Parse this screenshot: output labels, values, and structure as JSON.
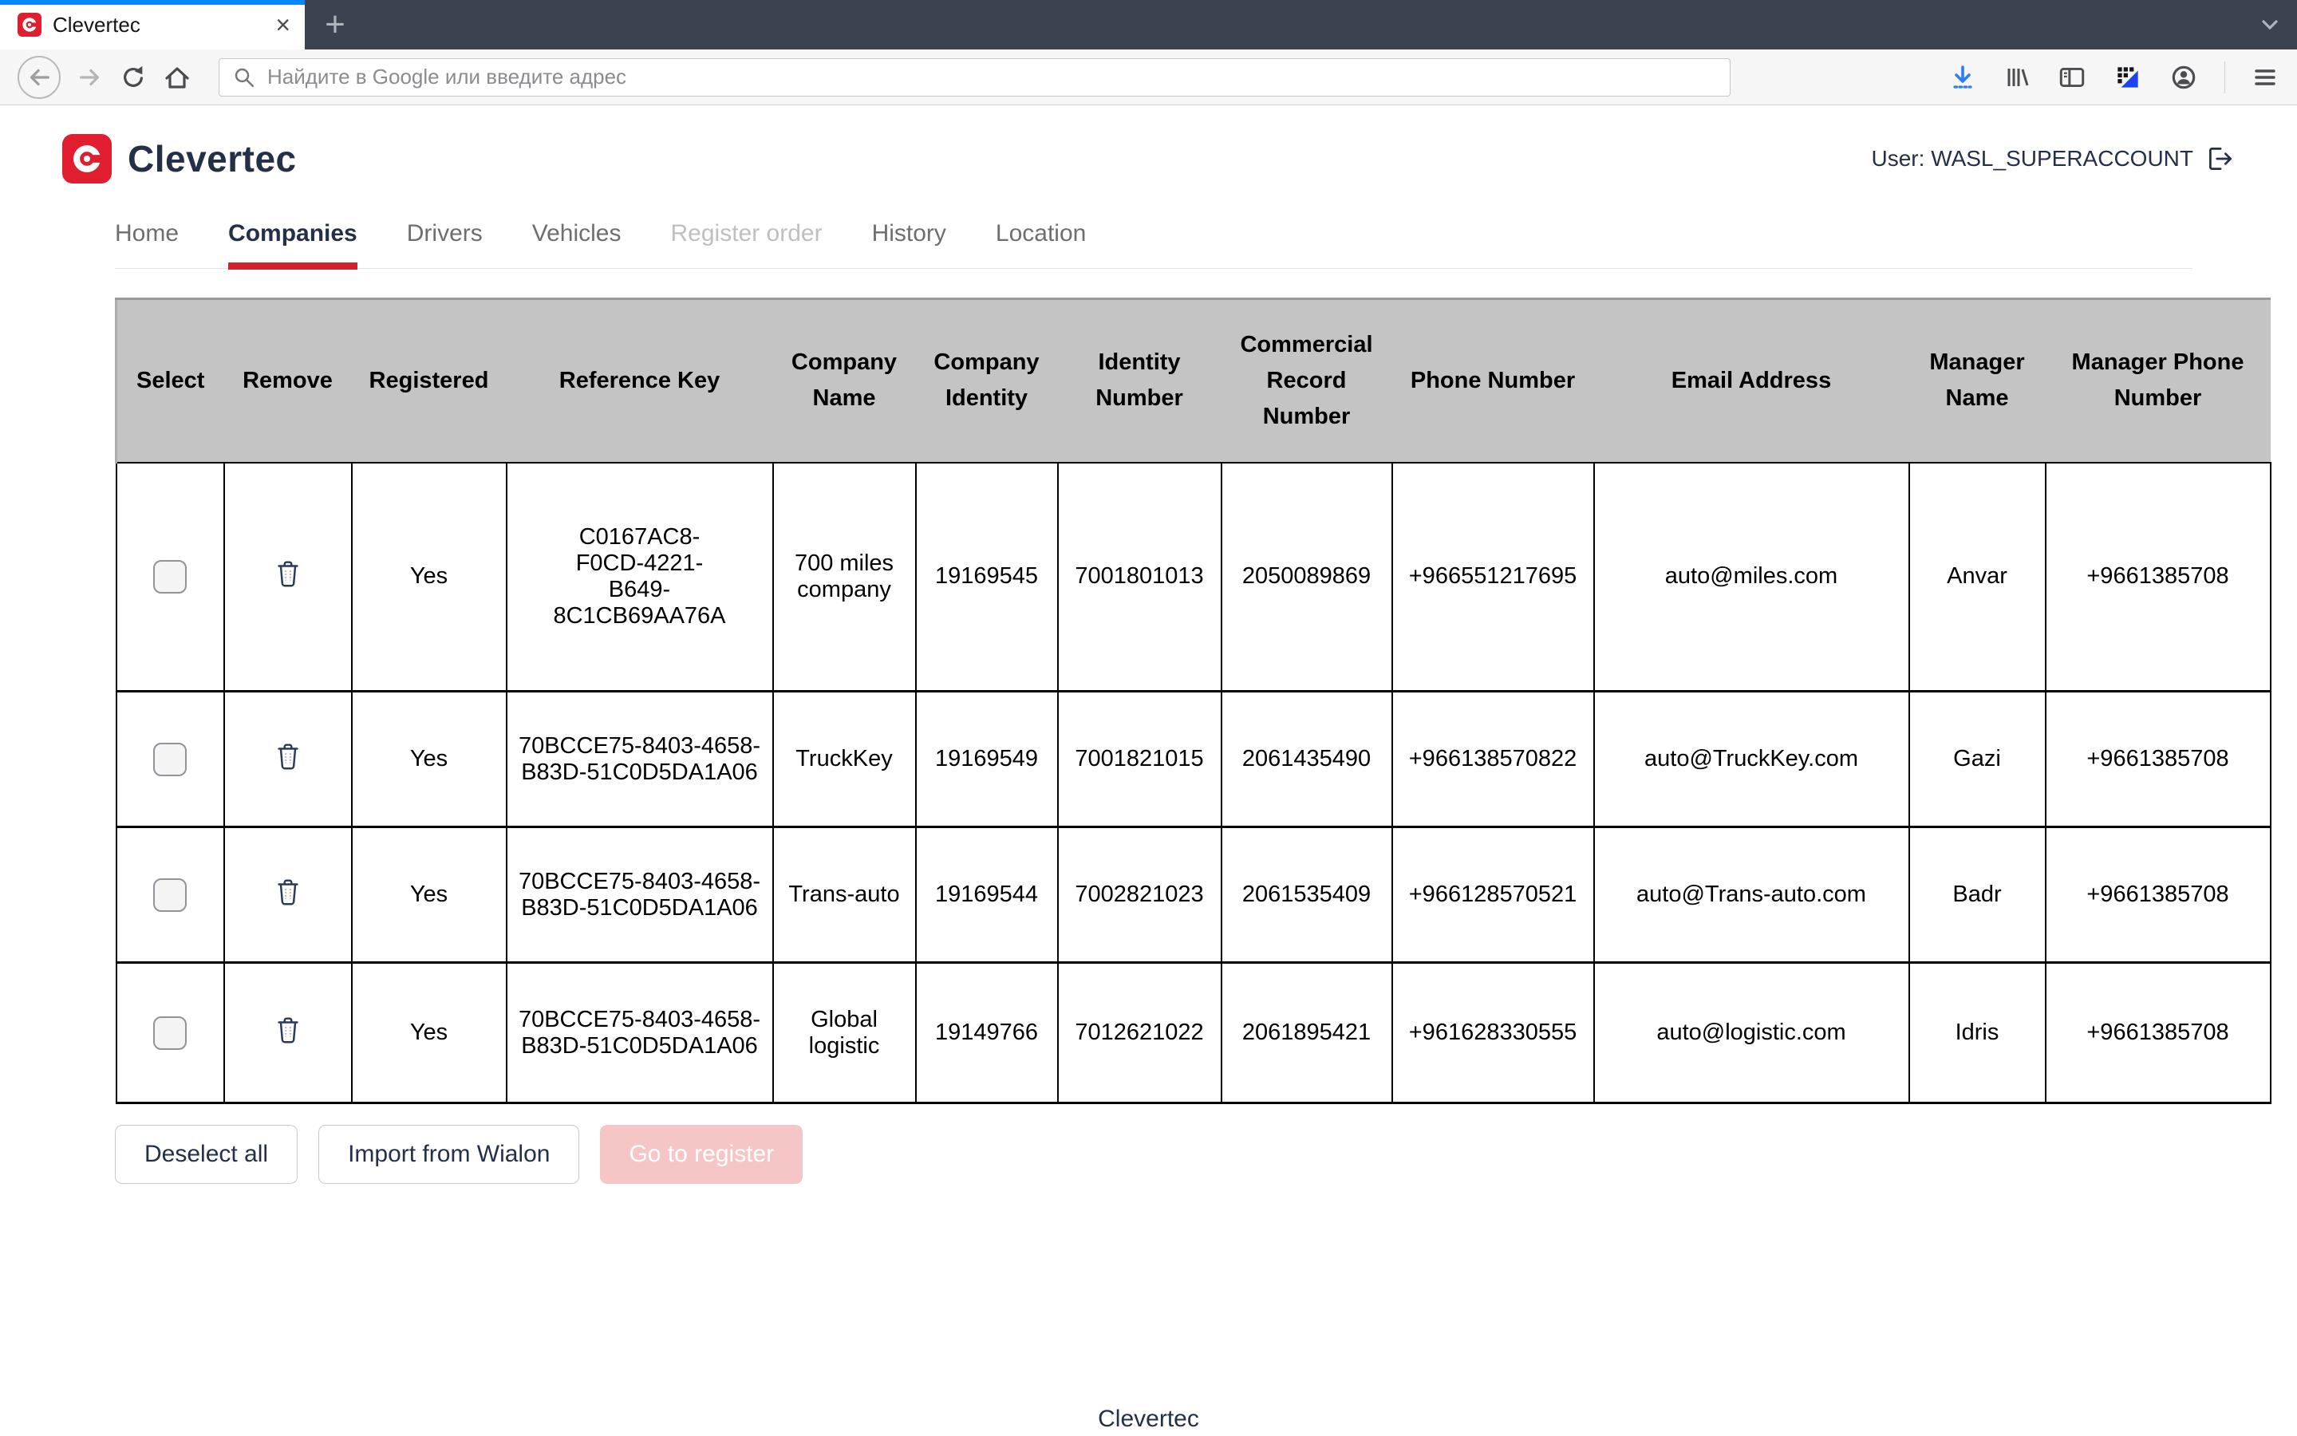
{
  "browser": {
    "tab": {
      "title": "Clevertec",
      "close": "×"
    },
    "new_tab": "+",
    "url_placeholder": "Найдите в Google или введите адрес",
    "toolbar_icons": [
      "back-icon",
      "forward-icon",
      "reload-icon",
      "home-icon",
      "search-icon",
      "download-icon",
      "library-icon",
      "sidebar-icon",
      "extension-icon",
      "account-icon",
      "menu-icon",
      "tabs-chevron-icon"
    ]
  },
  "header": {
    "brand": "Clevertec",
    "user": "User: WASL_SUPERACCOUNT"
  },
  "nav": {
    "items": [
      {
        "label": "Home",
        "state": "normal"
      },
      {
        "label": "Companies",
        "state": "active"
      },
      {
        "label": "Drivers",
        "state": "normal"
      },
      {
        "label": "Vehicles",
        "state": "normal"
      },
      {
        "label": "Register order",
        "state": "disabled"
      },
      {
        "label": "History",
        "state": "normal"
      },
      {
        "label": "Location",
        "state": "normal"
      }
    ]
  },
  "table": {
    "columns": [
      "Select",
      "Remove",
      "Registered",
      "Reference Key",
      "Company Name",
      "Company Identity",
      "Identity Number",
      "Commercial Record Number",
      "Phone Number",
      "Email Address",
      "Manager Name",
      "Manager Phone Number"
    ],
    "rows": [
      {
        "registered": "Yes",
        "reference_key": "C0167AC8-F0CD-4221-B649-8C1CB69AA76A",
        "company_name": "700 miles company",
        "company_identity": "19169545",
        "identity_number": "7001801013",
        "commercial_record_number": "2050089869",
        "phone_number": "+966551217695",
        "email_address": "auto@miles.com",
        "manager_name": "Anvar",
        "manager_phone": "+9661385708"
      },
      {
        "registered": "Yes",
        "reference_key": "70BCCE75-8403-4658-B83D-51C0D5DA1A06",
        "company_name": "TruckKey",
        "company_identity": "19169549",
        "identity_number": "7001821015",
        "commercial_record_number": "2061435490",
        "phone_number": "+966138570822",
        "email_address": "auto@TruckKey.com",
        "manager_name": "Gazi",
        "manager_phone": "+9661385708"
      },
      {
        "registered": "Yes",
        "reference_key": "70BCCE75-8403-4658-B83D-51C0D5DA1A06",
        "company_name": "Trans-auto",
        "company_identity": "19169544",
        "identity_number": "7002821023",
        "commercial_record_number": "2061535409",
        "phone_number": "+966128570521",
        "email_address": "auto@Trans-auto.com",
        "manager_name": "Badr",
        "manager_phone": "+9661385708"
      },
      {
        "registered": "Yes",
        "reference_key": "70BCCE75-8403-4658-B83D-51C0D5DA1A06",
        "company_name": "Global logistic",
        "company_identity": "19149766",
        "identity_number": "7012621022",
        "commercial_record_number": "2061895421",
        "phone_number": "+961628330555",
        "email_address": "auto@logistic.com",
        "manager_name": "Idris",
        "manager_phone": "+9661385708"
      }
    ]
  },
  "actions": {
    "deselect_all": "Deselect all",
    "import_wialon": "Import from Wialon",
    "go_register": "Go to register"
  },
  "footer": {
    "brand": "Clevertec"
  },
  "colors": {
    "brand_red": "#E01E2F",
    "navy": "#243047",
    "active_tab_stripe": "#0A84FF",
    "download_blue": "#2E7CF6",
    "table_header_bg": "#C4C4C4",
    "disabled_button_bg": "#F6C6C6",
    "accent_red_underline": "#D2222E"
  }
}
